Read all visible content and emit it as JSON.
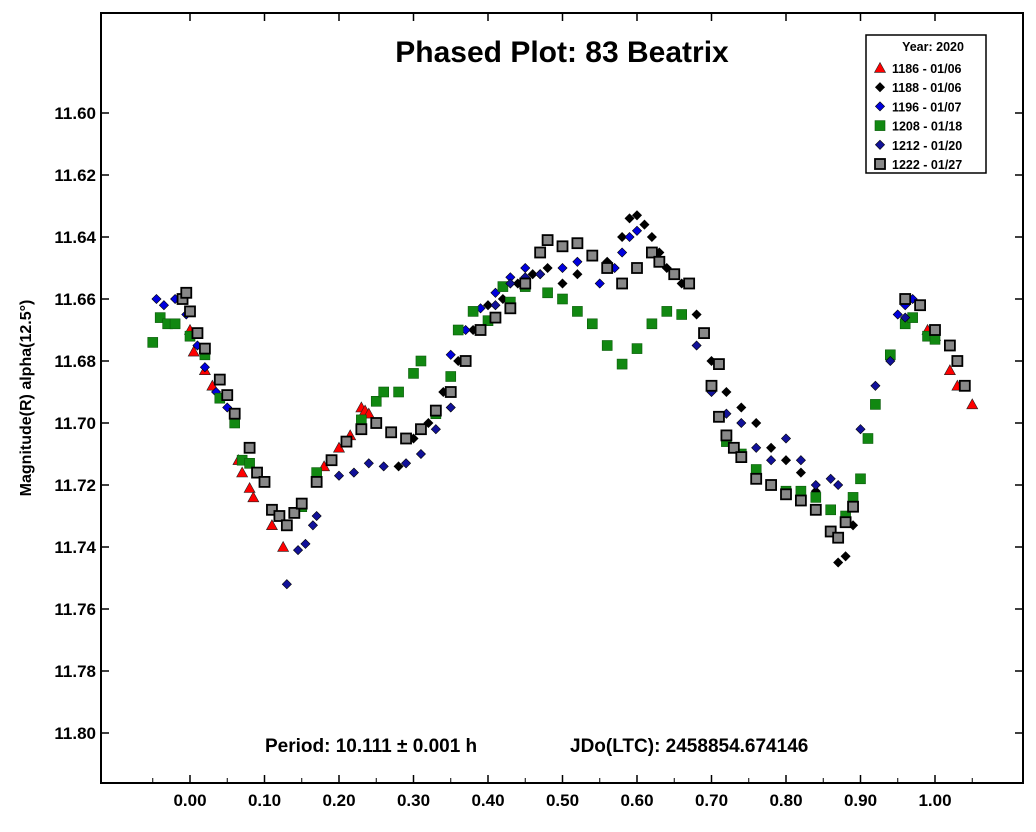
{
  "chart_data": {
    "type": "scatter",
    "title": "Phased Plot: 83 Beatrix",
    "xlabel": "",
    "ylabel": "Magnitude(R) alpha(12.5°)",
    "xlim": [
      -0.07,
      1.07
    ],
    "ylim": [
      11.575,
      11.825
    ],
    "y_inverted": true,
    "grid": false,
    "legend_placement": "top-right",
    "legend_title": "Year: 2020",
    "x_ticks": [
      "0.00",
      "0.10",
      "0.20",
      "0.30",
      "0.40",
      "0.50",
      "0.60",
      "0.70",
      "0.80",
      "0.90",
      "1.00"
    ],
    "y_ticks": [
      "11.60",
      "11.62",
      "11.64",
      "11.66",
      "11.68",
      "11.70",
      "11.72",
      "11.74",
      "11.76",
      "11.78",
      "11.80"
    ],
    "footer": {
      "period": "Period: 10.111 ± 0.001 h",
      "epoch": "JDo(LTC): 2458854.674146"
    },
    "series": [
      {
        "name": "1186 - 01/06",
        "marker": "triangle",
        "color": "#ff0000",
        "points": [
          [
            0.0,
            11.67
          ],
          [
            0.005,
            11.677
          ],
          [
            0.02,
            11.683
          ],
          [
            0.03,
            11.688
          ],
          [
            0.065,
            11.712
          ],
          [
            0.07,
            11.716
          ],
          [
            0.08,
            11.721
          ],
          [
            0.085,
            11.724
          ],
          [
            0.11,
            11.733
          ],
          [
            0.125,
            11.74
          ],
          [
            0.18,
            11.714
          ],
          [
            0.2,
            11.708
          ],
          [
            0.215,
            11.704
          ],
          [
            0.23,
            11.695
          ],
          [
            0.235,
            11.696
          ],
          [
            0.24,
            11.697
          ],
          [
            0.99,
            11.67
          ],
          [
            1.0,
            11.672
          ],
          [
            1.02,
            11.683
          ],
          [
            1.03,
            11.688
          ],
          [
            1.05,
            11.694
          ]
        ]
      },
      {
        "name": "1188 - 01/06",
        "marker": "diamond",
        "color": "#000000",
        "points": [
          [
            0.28,
            11.714
          ],
          [
            0.3,
            11.705
          ],
          [
            0.32,
            11.7
          ],
          [
            0.34,
            11.69
          ],
          [
            0.36,
            11.68
          ],
          [
            0.38,
            11.67
          ],
          [
            0.4,
            11.662
          ],
          [
            0.42,
            11.66
          ],
          [
            0.44,
            11.655
          ],
          [
            0.46,
            11.652
          ],
          [
            0.48,
            11.65
          ],
          [
            0.5,
            11.655
          ],
          [
            0.52,
            11.652
          ],
          [
            0.56,
            11.648
          ],
          [
            0.58,
            11.64
          ],
          [
            0.59,
            11.634
          ],
          [
            0.6,
            11.633
          ],
          [
            0.61,
            11.636
          ],
          [
            0.62,
            11.64
          ],
          [
            0.63,
            11.645
          ],
          [
            0.64,
            11.65
          ],
          [
            0.66,
            11.655
          ],
          [
            0.68,
            11.665
          ],
          [
            0.7,
            11.68
          ],
          [
            0.72,
            11.69
          ],
          [
            0.74,
            11.695
          ],
          [
            0.76,
            11.7
          ],
          [
            0.78,
            11.708
          ],
          [
            0.8,
            11.712
          ],
          [
            0.82,
            11.716
          ],
          [
            0.84,
            11.722
          ],
          [
            0.86,
            11.735
          ],
          [
            0.87,
            11.745
          ],
          [
            0.88,
            11.743
          ],
          [
            0.89,
            11.733
          ]
        ]
      },
      {
        "name": "1196 - 01/07",
        "marker": "diamond",
        "color": "#0000dd",
        "points": [
          [
            -0.045,
            11.66
          ],
          [
            -0.035,
            11.662
          ],
          [
            -0.02,
            11.66
          ],
          [
            -0.005,
            11.665
          ],
          [
            0.01,
            11.675
          ],
          [
            0.02,
            11.682
          ],
          [
            0.035,
            11.69
          ],
          [
            0.05,
            11.695
          ],
          [
            0.35,
            11.678
          ],
          [
            0.37,
            11.67
          ],
          [
            0.39,
            11.663
          ],
          [
            0.41,
            11.658
          ],
          [
            0.43,
            11.653
          ],
          [
            0.45,
            11.65
          ],
          [
            0.47,
            11.652
          ],
          [
            0.5,
            11.65
          ],
          [
            0.52,
            11.648
          ],
          [
            0.55,
            11.655
          ],
          [
            0.57,
            11.65
          ],
          [
            0.58,
            11.645
          ],
          [
            0.59,
            11.64
          ],
          [
            0.6,
            11.638
          ],
          [
            0.95,
            11.665
          ],
          [
            0.96,
            11.662
          ],
          [
            0.97,
            11.66
          ]
        ]
      },
      {
        "name": "1208 - 01/18",
        "marker": "square",
        "color": "#118811",
        "points": [
          [
            -0.05,
            11.674
          ],
          [
            -0.04,
            11.666
          ],
          [
            -0.03,
            11.668
          ],
          [
            -0.02,
            11.668
          ],
          [
            0.0,
            11.672
          ],
          [
            0.02,
            11.678
          ],
          [
            0.04,
            11.692
          ],
          [
            0.06,
            11.7
          ],
          [
            0.07,
            11.712
          ],
          [
            0.08,
            11.713
          ],
          [
            0.15,
            11.727
          ],
          [
            0.17,
            11.716
          ],
          [
            0.19,
            11.712
          ],
          [
            0.21,
            11.706
          ],
          [
            0.23,
            11.699
          ],
          [
            0.25,
            11.693
          ],
          [
            0.26,
            11.69
          ],
          [
            0.28,
            11.69
          ],
          [
            0.3,
            11.684
          ],
          [
            0.31,
            11.68
          ],
          [
            0.33,
            11.697
          ],
          [
            0.35,
            11.685
          ],
          [
            0.36,
            11.67
          ],
          [
            0.38,
            11.664
          ],
          [
            0.4,
            11.667
          ],
          [
            0.42,
            11.656
          ],
          [
            0.43,
            11.661
          ],
          [
            0.45,
            11.656
          ],
          [
            0.48,
            11.658
          ],
          [
            0.5,
            11.66
          ],
          [
            0.52,
            11.664
          ],
          [
            0.54,
            11.668
          ],
          [
            0.56,
            11.675
          ],
          [
            0.58,
            11.681
          ],
          [
            0.6,
            11.676
          ],
          [
            0.62,
            11.668
          ],
          [
            0.64,
            11.664
          ],
          [
            0.66,
            11.665
          ],
          [
            0.72,
            11.706
          ],
          [
            0.74,
            11.71
          ],
          [
            0.76,
            11.715
          ],
          [
            0.78,
            11.72
          ],
          [
            0.8,
            11.722
          ],
          [
            0.82,
            11.722
          ],
          [
            0.84,
            11.724
          ],
          [
            0.86,
            11.728
          ],
          [
            0.88,
            11.73
          ],
          [
            0.89,
            11.724
          ],
          [
            0.9,
            11.718
          ],
          [
            0.91,
            11.705
          ],
          [
            0.92,
            11.694
          ],
          [
            0.94,
            11.678
          ],
          [
            0.96,
            11.668
          ],
          [
            0.97,
            11.666
          ],
          [
            0.99,
            11.672
          ],
          [
            1.0,
            11.673
          ]
        ]
      },
      {
        "name": "1212 - 01/20",
        "marker": "diamond",
        "color": "#111199",
        "points": [
          [
            0.13,
            11.752
          ],
          [
            0.145,
            11.741
          ],
          [
            0.155,
            11.739
          ],
          [
            0.165,
            11.733
          ],
          [
            0.17,
            11.73
          ],
          [
            0.2,
            11.717
          ],
          [
            0.22,
            11.716
          ],
          [
            0.24,
            11.713
          ],
          [
            0.26,
            11.714
          ],
          [
            0.29,
            11.713
          ],
          [
            0.31,
            11.71
          ],
          [
            0.33,
            11.702
          ],
          [
            0.35,
            11.695
          ],
          [
            0.37,
            11.68
          ],
          [
            0.39,
            11.67
          ],
          [
            0.41,
            11.662
          ],
          [
            0.43,
            11.655
          ],
          [
            0.45,
            11.653
          ],
          [
            0.47,
            11.652
          ],
          [
            0.68,
            11.675
          ],
          [
            0.7,
            11.69
          ],
          [
            0.72,
            11.697
          ],
          [
            0.74,
            11.7
          ],
          [
            0.76,
            11.708
          ],
          [
            0.78,
            11.712
          ],
          [
            0.8,
            11.705
          ],
          [
            0.82,
            11.712
          ],
          [
            0.84,
            11.72
          ],
          [
            0.86,
            11.718
          ],
          [
            0.87,
            11.72
          ],
          [
            0.9,
            11.702
          ],
          [
            0.92,
            11.688
          ],
          [
            0.94,
            11.68
          ],
          [
            0.96,
            11.666
          ]
        ]
      },
      {
        "name": "1222 - 01/27",
        "marker": "square",
        "color": "#888888",
        "points": [
          [
            -0.01,
            11.66
          ],
          [
            -0.005,
            11.658
          ],
          [
            0.0,
            11.664
          ],
          [
            0.01,
            11.671
          ],
          [
            0.02,
            11.676
          ],
          [
            0.04,
            11.686
          ],
          [
            0.05,
            11.691
          ],
          [
            0.06,
            11.697
          ],
          [
            0.08,
            11.708
          ],
          [
            0.09,
            11.716
          ],
          [
            0.1,
            11.719
          ],
          [
            0.11,
            11.728
          ],
          [
            0.12,
            11.73
          ],
          [
            0.13,
            11.733
          ],
          [
            0.14,
            11.729
          ],
          [
            0.15,
            11.726
          ],
          [
            0.17,
            11.719
          ],
          [
            0.19,
            11.712
          ],
          [
            0.21,
            11.706
          ],
          [
            0.23,
            11.702
          ],
          [
            0.25,
            11.7
          ],
          [
            0.27,
            11.703
          ],
          [
            0.29,
            11.705
          ],
          [
            0.31,
            11.702
          ],
          [
            0.33,
            11.696
          ],
          [
            0.35,
            11.69
          ],
          [
            0.37,
            11.68
          ],
          [
            0.39,
            11.67
          ],
          [
            0.41,
            11.666
          ],
          [
            0.43,
            11.663
          ],
          [
            0.45,
            11.655
          ],
          [
            0.47,
            11.645
          ],
          [
            0.48,
            11.641
          ],
          [
            0.5,
            11.643
          ],
          [
            0.52,
            11.642
          ],
          [
            0.54,
            11.646
          ],
          [
            0.56,
            11.65
          ],
          [
            0.58,
            11.655
          ],
          [
            0.6,
            11.65
          ],
          [
            0.62,
            11.645
          ],
          [
            0.63,
            11.648
          ],
          [
            0.65,
            11.652
          ],
          [
            0.67,
            11.655
          ],
          [
            0.69,
            11.671
          ],
          [
            0.7,
            11.688
          ],
          [
            0.71,
            11.681
          ],
          [
            0.71,
            11.698
          ],
          [
            0.72,
            11.704
          ],
          [
            0.73,
            11.708
          ],
          [
            0.74,
            11.711
          ],
          [
            0.76,
            11.718
          ],
          [
            0.78,
            11.72
          ],
          [
            0.8,
            11.723
          ],
          [
            0.82,
            11.725
          ],
          [
            0.84,
            11.728
          ],
          [
            0.86,
            11.735
          ],
          [
            0.87,
            11.737
          ],
          [
            0.88,
            11.732
          ],
          [
            0.89,
            11.727
          ],
          [
            0.96,
            11.66
          ],
          [
            0.98,
            11.662
          ],
          [
            1.0,
            11.67
          ],
          [
            1.02,
            11.675
          ],
          [
            1.03,
            11.68
          ],
          [
            1.04,
            11.688
          ]
        ]
      }
    ]
  }
}
